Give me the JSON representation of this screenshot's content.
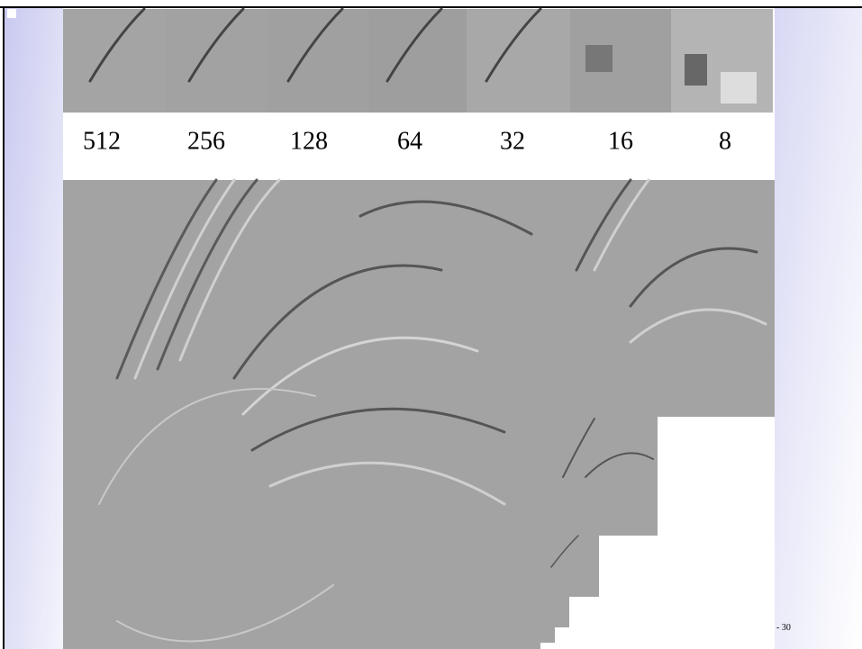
{
  "slide": {
    "labels": [
      "512",
      "256",
      "128",
      "64",
      "32",
      "16",
      "8"
    ],
    "page_number": "- 30"
  }
}
